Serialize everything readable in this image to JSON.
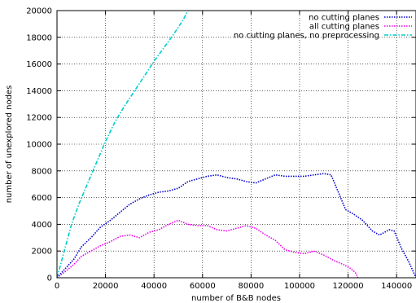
{
  "chart_data": {
    "type": "line",
    "title": "",
    "xlabel": "number of B&B nodes",
    "ylabel": "number of unexplored nodes",
    "xlim": [
      0,
      148000
    ],
    "ylim": [
      0,
      20000
    ],
    "x_ticks": [
      0,
      20000,
      40000,
      60000,
      80000,
      100000,
      120000,
      140000
    ],
    "y_ticks": [
      0,
      2000,
      4000,
      6000,
      8000,
      10000,
      12000,
      14000,
      16000,
      18000,
      20000
    ],
    "grid": true,
    "legend_position": "top-right",
    "series": [
      {
        "name": "no cutting planes",
        "color": "#0000cc",
        "style": "dotted",
        "points": [
          [
            0,
            0
          ],
          [
            3000,
            600
          ],
          [
            7000,
            1400
          ],
          [
            10000,
            2300
          ],
          [
            14000,
            3000
          ],
          [
            18000,
            3800
          ],
          [
            22000,
            4300
          ],
          [
            26000,
            4900
          ],
          [
            30000,
            5500
          ],
          [
            34000,
            5900
          ],
          [
            38000,
            6200
          ],
          [
            42000,
            6400
          ],
          [
            46000,
            6500
          ],
          [
            50000,
            6700
          ],
          [
            54000,
            7200
          ],
          [
            58000,
            7400
          ],
          [
            62000,
            7600
          ],
          [
            66000,
            7700
          ],
          [
            70000,
            7500
          ],
          [
            74000,
            7400
          ],
          [
            78000,
            7200
          ],
          [
            82000,
            7100
          ],
          [
            86000,
            7400
          ],
          [
            90000,
            7700
          ],
          [
            94000,
            7600
          ],
          [
            98000,
            7600
          ],
          [
            102000,
            7600
          ],
          [
            106000,
            7700
          ],
          [
            110000,
            7800
          ],
          [
            113000,
            7700
          ],
          [
            116000,
            6400
          ],
          [
            119000,
            5100
          ],
          [
            122000,
            4800
          ],
          [
            126000,
            4300
          ],
          [
            130000,
            3500
          ],
          [
            133000,
            3200
          ],
          [
            137000,
            3600
          ],
          [
            139000,
            3500
          ],
          [
            142000,
            2200
          ],
          [
            145000,
            1200
          ],
          [
            148000,
            0
          ]
        ]
      },
      {
        "name": "all cutting planes",
        "color": "#ee00ee",
        "style": "dotted",
        "points": [
          [
            0,
            0
          ],
          [
            3000,
            400
          ],
          [
            7000,
            1000
          ],
          [
            10000,
            1600
          ],
          [
            14000,
            2000
          ],
          [
            18000,
            2400
          ],
          [
            22000,
            2700
          ],
          [
            26000,
            3100
          ],
          [
            30000,
            3200
          ],
          [
            34000,
            3000
          ],
          [
            38000,
            3400
          ],
          [
            42000,
            3600
          ],
          [
            46000,
            4000
          ],
          [
            50000,
            4300
          ],
          [
            54000,
            4000
          ],
          [
            58000,
            3900
          ],
          [
            62000,
            3900
          ],
          [
            66000,
            3600
          ],
          [
            70000,
            3500
          ],
          [
            74000,
            3700
          ],
          [
            78000,
            3900
          ],
          [
            82000,
            3700
          ],
          [
            86000,
            3200
          ],
          [
            90000,
            2800
          ],
          [
            94000,
            2100
          ],
          [
            98000,
            1900
          ],
          [
            102000,
            1800
          ],
          [
            106000,
            2000
          ],
          [
            110000,
            1700
          ],
          [
            114000,
            1300
          ],
          [
            118000,
            1000
          ],
          [
            121000,
            700
          ],
          [
            123000,
            400
          ],
          [
            124000,
            0
          ]
        ]
      },
      {
        "name": "no cutting planes, no preprocessing",
        "color": "#00cccc",
        "style": "dashdot",
        "points": [
          [
            0,
            0
          ],
          [
            3000,
            2000
          ],
          [
            6000,
            4000
          ],
          [
            9000,
            5500
          ],
          [
            12000,
            6800
          ],
          [
            16000,
            8500
          ],
          [
            20000,
            10200
          ],
          [
            24000,
            11700
          ],
          [
            28000,
            12900
          ],
          [
            32000,
            14000
          ],
          [
            36000,
            15100
          ],
          [
            40000,
            16200
          ],
          [
            44000,
            17200
          ],
          [
            48000,
            18200
          ],
          [
            52000,
            19300
          ],
          [
            54000,
            20000
          ]
        ]
      }
    ]
  }
}
